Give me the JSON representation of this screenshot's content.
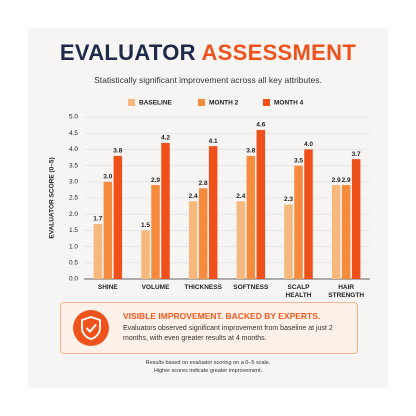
{
  "title_dark": "EVALUATOR",
  "title_accent": "ASSESSMENT",
  "chart_data": {
    "type": "bar",
    "subtitle": "Statistically significant improvement across all key attributes.",
    "y_label": "EVALUATOR SCORE (0–5)",
    "categories": [
      "SHINE",
      "VOLUME",
      "THICKNESS",
      "SOFTNESS",
      "SCALP HEALTH",
      "HAIR STRENGTH"
    ],
    "series": [
      {
        "name": "BASELINE",
        "color": "#f6b87c",
        "values": [
          1.7,
          1.5,
          2.4,
          2.4,
          2.3,
          2.9
        ],
        "value_labels": [
          "1.7",
          "1.5",
          "2.4",
          "2.4",
          "2.3",
          "2.9"
        ]
      },
      {
        "name": "MONTH 2",
        "color": "#f78b3d",
        "values": [
          3.0,
          2.9,
          2.8,
          3.8,
          3.5,
          2.9
        ],
        "value_labels": [
          "3.0",
          "2.9",
          "2.8",
          "3.8",
          "3.5",
          "2.9"
        ]
      },
      {
        "name": "MONTH 4",
        "color": "#f0501a",
        "values": [
          3.8,
          4.2,
          4.1,
          4.6,
          4.0,
          3.7
        ],
        "value_labels": [
          "3.8",
          "4.2",
          "4.1",
          "4.6",
          "4.0",
          "3.7"
        ]
      }
    ],
    "ylim": [
      0,
      5
    ],
    "yticks": [
      {
        "value": 0,
        "label": "0.0"
      },
      {
        "value": 0.5,
        "label": "0.5"
      },
      {
        "value": 1,
        "label": "1.0"
      },
      {
        "value": 1.5,
        "label": "1.5"
      },
      {
        "value": 2,
        "label": "2.0"
      },
      {
        "value": 2.5,
        "label": "2.5"
      },
      {
        "value": 3,
        "label": "3.0"
      },
      {
        "value": 3.5,
        "label": "3.5"
      },
      {
        "value": 4,
        "label": "4.0"
      },
      {
        "value": 4.5,
        "label": "4.5"
      },
      {
        "value": 5,
        "label": "5.0"
      }
    ],
    "grid": true
  },
  "callout": {
    "heading": "VISIBLE IMPROVEMENT. BACKED BY EXPERTS.",
    "body": "Evaluators observed significant improvement from baseline at just 2 months, with even greater results at 4 months."
  },
  "footnotes": [
    "Results based on evaluator scoring on a 0–5 scale.",
    "Higher scores indicate greater improvement."
  ]
}
